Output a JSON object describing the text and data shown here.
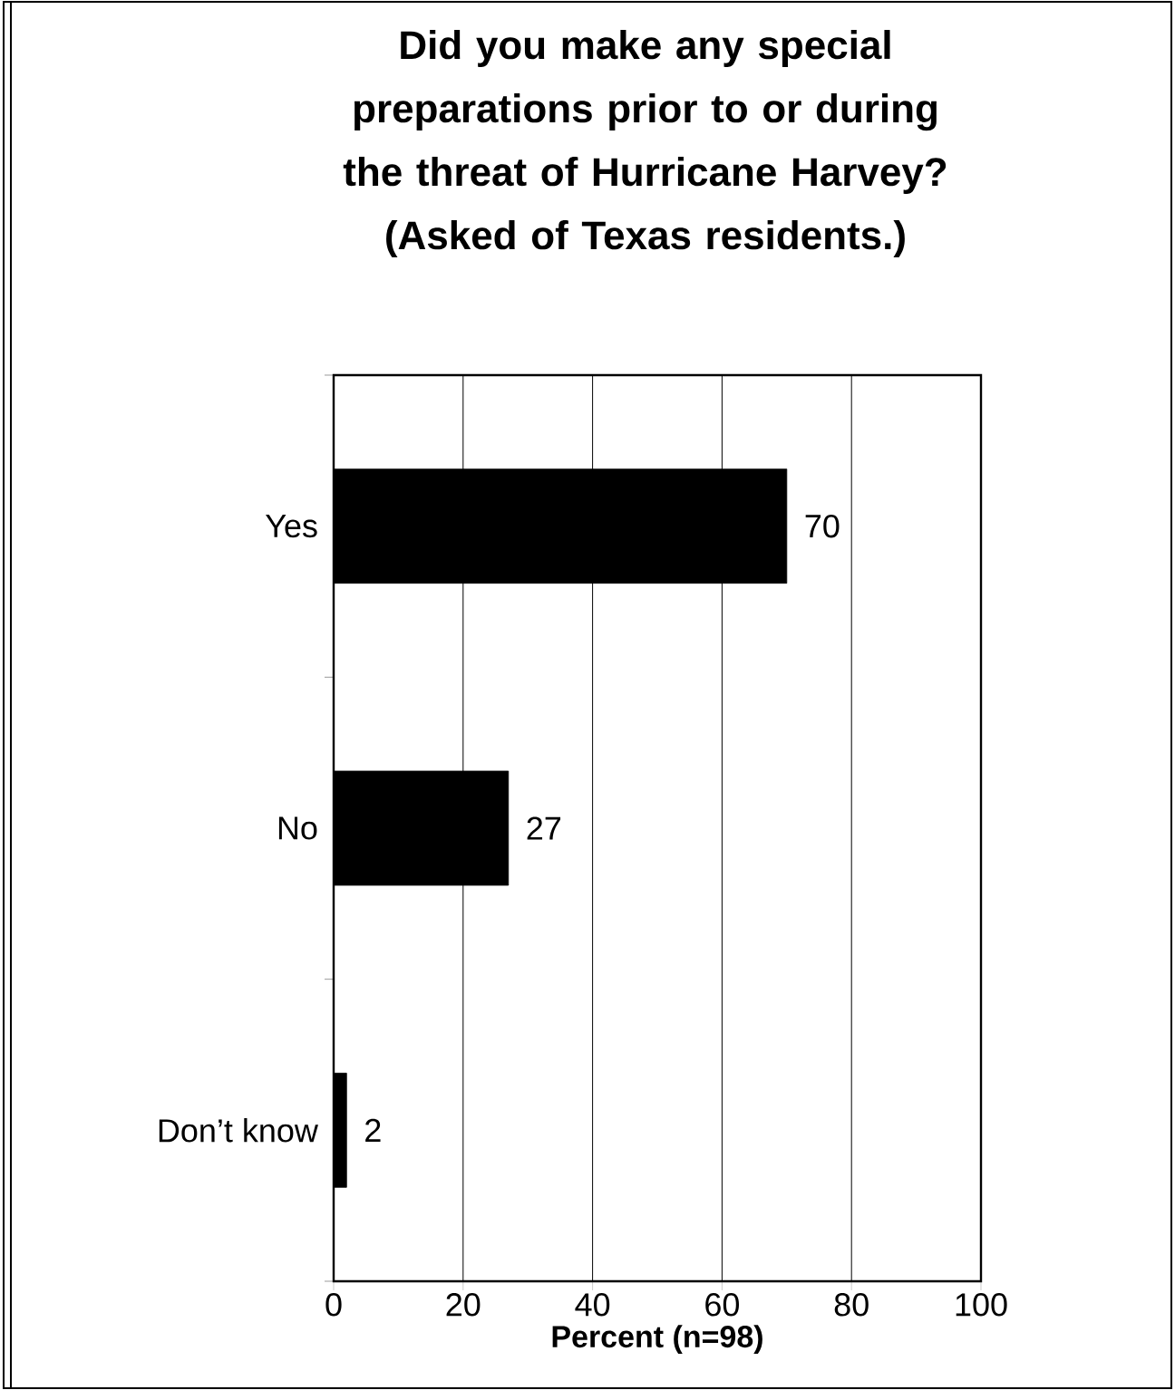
{
  "chart_data": {
    "type": "bar",
    "orientation": "horizontal",
    "title": "Did you make any special preparations prior to or during the threat of Hurricane Harvey? (Asked of Texas residents.)",
    "xlabel": "Percent (n=98)",
    "categories": [
      "Yes",
      "No",
      "Don’t know"
    ],
    "values": [
      70,
      27,
      2
    ],
    "color": "#000000",
    "xlim": [
      0,
      100
    ],
    "xticks": [
      0,
      20,
      40,
      60,
      80,
      100
    ],
    "grid": "x",
    "data_labels": true
  }
}
